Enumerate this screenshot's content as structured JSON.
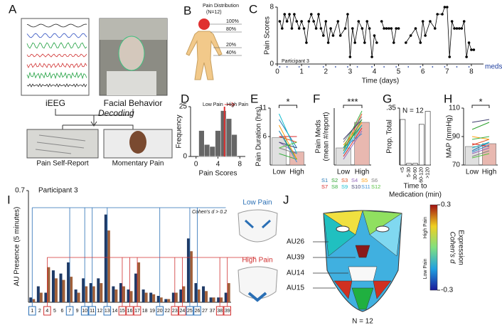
{
  "panel_a": {
    "label": "A",
    "eeg_label": "iEEG",
    "face_label": "Facial Behavior",
    "decoding": "Decoding",
    "report_label": "Pain Self-Report",
    "momentary_label": "Momentary Pain"
  },
  "panel_b": {
    "label": "B",
    "title": "Pain Distribution",
    "subtitle": "(N=12)",
    "levels": [
      "100%",
      "80%",
      "20%",
      "40%"
    ]
  },
  "panel_j": {
    "label": "J",
    "aus": [
      "AU26",
      "AU39",
      "AU14",
      "AU15"
    ],
    "n": "N = 12",
    "colorbar": {
      "max": 0.3,
      "min": -0.3,
      "title": "Expression",
      "subtitle": "Cohen's d",
      "high": "High Pain",
      "low": "Low Pain"
    }
  },
  "chart_data": [
    {
      "type": "line",
      "panel": "C",
      "ylabel": "Pain Scores",
      "xlabel": "Time (days)",
      "annotation": "Participant 3",
      "color": "#000000",
      "x": [
        0.1,
        0.2,
        0.3,
        0.4,
        0.5,
        0.6,
        0.7,
        0.8,
        0.9,
        1.0,
        1.1,
        1.2,
        1.3,
        1.4,
        1.5,
        1.6,
        1.7,
        1.8,
        1.9,
        2.0,
        2.1,
        2.2,
        2.3,
        2.5,
        2.6,
        2.8,
        2.9,
        3.0,
        3.1,
        3.2,
        3.35,
        3.5,
        3.6,
        3.7,
        3.8,
        3.9,
        4.0,
        4.1,
        4.2,
        4.3,
        4.4,
        4.5,
        4.6,
        4.7,
        4.8,
        4.9,
        5.0,
        5.1,
        5.3,
        5.5,
        5.7,
        5.9,
        6.0,
        6.1,
        6.3,
        6.5,
        6.6,
        6.8,
        6.9,
        7.0,
        7.1,
        7.2,
        7.3,
        7.4,
        7.5,
        7.6,
        7.7,
        7.8,
        7.9,
        8.0,
        8.1
      ],
      "values": [
        6,
        5,
        7,
        6,
        7,
        5,
        7,
        6,
        5,
        6,
        5,
        3,
        6,
        7,
        6,
        5,
        7,
        5,
        4,
        6,
        3,
        5,
        4,
        6,
        4,
        5,
        7,
        1,
        5,
        3,
        6,
        5,
        3,
        6,
        5,
        1,
        4,
        3,
        null,
        6,
        5,
        5,
        5,
        5,
        3,
        5,
        5,
        null,
        3,
        4,
        5,
        3,
        6,
        4,
        6,
        5,
        7,
        7,
        8,
        8,
        1,
        6,
        5,
        5,
        5,
        5,
        6,
        1,
        3,
        2,
        2
      ],
      "xlim": [
        0,
        8.5
      ],
      "xticks": [
        0,
        1,
        2,
        3,
        4,
        5,
        6,
        7,
        8
      ],
      "ylim": [
        0,
        8
      ],
      "yticks": [
        0,
        8
      ],
      "meds_label": "meds",
      "meds_color": "#1f3f9f",
      "meds": [
        0.1,
        0.4,
        0.9,
        1.3,
        1.9,
        2.4,
        2.9,
        3.3,
        3.9,
        4.4,
        4.9,
        5.4,
        5.9,
        6.4,
        6.9,
        7.4,
        7.9
      ]
    },
    {
      "type": "histogram",
      "panel": "D",
      "ylabel": "Frequency",
      "xlabel": "Pain Scores",
      "color": "#666666",
      "bins": [
        0.5,
        1.5,
        2.5,
        3.5,
        4.5,
        5.5,
        6.5,
        7.5
      ],
      "values": [
        13,
        6,
        5,
        13,
        23,
        19,
        11
      ],
      "xlim": [
        -1,
        9
      ],
      "xticks": [
        0,
        4,
        8
      ],
      "ylim": [
        0,
        25
      ],
      "yticks": [
        0,
        25
      ],
      "threshold": 5.2,
      "threshold_color": "#e03030",
      "low_label": "Low Pain",
      "high_label": "High Pain"
    },
    {
      "type": "paired-bar",
      "panel": "E",
      "ylabel": "Pain Duration (hrs)",
      "categories": [
        "Low",
        "High"
      ],
      "values": [
        5.8,
        3.3
      ],
      "bar_colors": [
        "#e0e0e0",
        "#e8b8b0"
      ],
      "significance": "*",
      "ylim": [
        1,
        11
      ],
      "yticks": [
        6,
        11
      ],
      "series": [
        {
          "color": "#1f77b4",
          "values": [
            9,
            4
          ]
        },
        {
          "color": "#2ca02c",
          "values": [
            7,
            2
          ]
        },
        {
          "color": "#e05020",
          "values": [
            6,
            5
          ]
        },
        {
          "color": "#9467bd",
          "values": [
            5,
            3
          ]
        },
        {
          "color": "#ff9f0e",
          "values": [
            8,
            2
          ]
        },
        {
          "color": "#7f7f7f",
          "values": [
            4,
            3
          ]
        },
        {
          "color": "#d62728",
          "values": [
            6,
            6
          ]
        },
        {
          "color": "#3cb043",
          "values": [
            3,
            2
          ]
        },
        {
          "color": "#17becf",
          "values": [
            10,
            3
          ]
        },
        {
          "color": "#3f3f6f",
          "values": [
            5,
            4
          ]
        },
        {
          "color": "#3b8fd4",
          "values": [
            7,
            1.5
          ]
        },
        {
          "color": "#55c040",
          "values": [
            4,
            5
          ]
        }
      ]
    },
    {
      "type": "paired-bar",
      "panel": "F",
      "ylabel": [
        "Pain Meds",
        "(mean #/report)"
      ],
      "categories": [
        "Low",
        "High"
      ],
      "values": [
        0.3,
        0.75
      ],
      "bar_colors": [
        "#e0e0e0",
        "#e8b8b0"
      ],
      "significance": "***",
      "ylim": [
        0,
        1
      ],
      "series": [
        {
          "name": "S1",
          "color": "#1f77b4",
          "values": [
            0.2,
            0.8
          ]
        },
        {
          "name": "S2",
          "color": "#2ca02c",
          "values": [
            0.3,
            0.7
          ]
        },
        {
          "name": "S3",
          "color": "#e05020",
          "values": [
            0.25,
            0.9
          ]
        },
        {
          "name": "S4",
          "color": "#9467bd",
          "values": [
            0.1,
            0.6
          ]
        },
        {
          "name": "S5",
          "color": "#ff9f0e",
          "values": [
            0.35,
            0.75
          ]
        },
        {
          "name": "S6",
          "color": "#7f7f7f",
          "values": [
            0.4,
            0.85
          ]
        },
        {
          "name": "S7",
          "color": "#d62728",
          "values": [
            0.15,
            0.65
          ]
        },
        {
          "name": "S8",
          "color": "#3cb043",
          "values": [
            0.3,
            0.95
          ]
        },
        {
          "name": "S9",
          "color": "#17becf",
          "values": [
            0.2,
            0.7
          ]
        },
        {
          "name": "S10",
          "color": "#3f3f6f",
          "values": [
            0.45,
            0.8
          ]
        },
        {
          "name": "S11",
          "color": "#3b8fd4",
          "values": [
            0.3,
            0.55
          ]
        },
        {
          "name": "S12",
          "color": "#55c040",
          "values": [
            0.25,
            0.8
          ]
        }
      ]
    },
    {
      "type": "bar",
      "panel": "G",
      "ylabel": "Prop. Total",
      "xlabel": [
        "Time to",
        "Medication (min)"
      ],
      "annotation": "N = 12",
      "categories": [
        "<5",
        "5-30",
        "30-60",
        "60-120",
        ">120"
      ],
      "values": [
        0.28,
        0.01,
        0.01,
        0.25,
        0.33
      ],
      "color": "#ffffff",
      "ylim": [
        0,
        0.35
      ],
      "yticks": [
        {
          "value": 0.35,
          "label": ".35"
        }
      ]
    },
    {
      "type": "paired-bar",
      "panel": "H",
      "ylabel": "MAP (mmHg)",
      "categories": [
        "Low",
        "High"
      ],
      "values": [
        83,
        85
      ],
      "bar_colors": [
        "#e0e0e0",
        "#e8b8b0"
      ],
      "significance": "*",
      "ylim": [
        70,
        110
      ],
      "yticks": [
        70,
        90,
        110
      ],
      "series": [
        {
          "color": "#1f77b4",
          "values": [
            80,
            86
          ]
        },
        {
          "color": "#2ca02c",
          "values": [
            95,
            100
          ]
        },
        {
          "color": "#e05020",
          "values": [
            84,
            88
          ]
        },
        {
          "color": "#9467bd",
          "values": [
            78,
            82
          ]
        },
        {
          "color": "#ff9f0e",
          "values": [
            90,
            88
          ]
        },
        {
          "color": "#7f7f7f",
          "values": [
            76,
            80
          ]
        },
        {
          "color": "#d62728",
          "values": [
            85,
            83
          ]
        },
        {
          "color": "#3cb043",
          "values": [
            88,
            90
          ]
        },
        {
          "color": "#17becf",
          "values": [
            82,
            86
          ]
        },
        {
          "color": "#3f3f6f",
          "values": [
            100,
            102
          ]
        },
        {
          "color": "#3b8fd4",
          "values": [
            79,
            84
          ]
        },
        {
          "color": "#55c040",
          "values": [
            75,
            78
          ]
        }
      ]
    },
    {
      "type": "grouped-bar",
      "panel": "I",
      "ylabel": "AU Presence (5 minutes)",
      "annotation": "Participant 3",
      "cohen": "Cohen's d > 0.2",
      "low_label": "Low Pain",
      "high_label": "High Pain",
      "low_color": "#2a6fb5",
      "high_color": "#d03030",
      "categories": [
        "1",
        "2",
        "4",
        "5",
        "6",
        "7",
        "9",
        "10",
        "11",
        "12",
        "13",
        "14",
        "15",
        "16",
        "17",
        "18",
        "19",
        "20",
        "22",
        "23",
        "24",
        "25",
        "26",
        "27",
        "37",
        "38",
        "39"
      ],
      "category_colors": [
        "#2a6fb5",
        null,
        "#d03030",
        null,
        null,
        "#2a6fb5",
        null,
        "#2a6fb5",
        "#2a6fb5",
        null,
        "#2a6fb5",
        null,
        "#d03030",
        "#d03030",
        "#d03030",
        null,
        null,
        "#2a6fb5",
        null,
        "#d03030",
        "#d03030",
        "#2a6fb5",
        "#2a6fb5",
        null,
        null,
        "#d03030",
        "#d03030"
      ],
      "ylim": [
        0,
        0.7
      ],
      "yticks": [
        0.7
      ],
      "series": [
        {
          "color": "#1f3a66",
          "values": [
            0.03,
            0.1,
            0.06,
            0.2,
            0.18,
            0.25,
            0.08,
            0.15,
            0.12,
            0.15,
            0.55,
            0.1,
            0.12,
            0.08,
            0.18,
            0.08,
            0.06,
            0.04,
            0.02,
            0.06,
            0.08,
            0.4,
            0.12,
            0.1,
            0.03,
            0.03,
            0.06
          ]
        },
        {
          "color": "#a0603a",
          "values": [
            0.02,
            0.06,
            0.22,
            0.15,
            0.14,
            0.16,
            0.06,
            0.1,
            0.1,
            0.12,
            0.45,
            0.08,
            0.1,
            0.07,
            0.25,
            0.06,
            0.05,
            0.03,
            0.02,
            0.06,
            0.1,
            0.32,
            0.08,
            0.07,
            0.03,
            0.03,
            0.12
          ]
        }
      ]
    }
  ]
}
